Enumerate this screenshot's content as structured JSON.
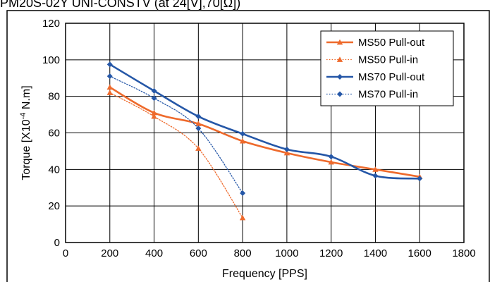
{
  "page_title_partial": "PM20S-02Y UNI-CONSTV (at 24[V],70[Ω])",
  "colors": {
    "orange": "#ee6a2c",
    "blue": "#2557a7",
    "grid": "#000000",
    "frame": "#000000"
  },
  "chart_data": {
    "type": "line",
    "title": "",
    "xlabel": "Frequency [PPS]",
    "ylabel_main": "Torque [X10",
    "ylabel_sup": "-4",
    "ylabel_tail": " N.m]",
    "xlim": [
      0,
      1800
    ],
    "ylim": [
      0,
      120
    ],
    "xticks": [
      0,
      200,
      400,
      600,
      800,
      1000,
      1200,
      1400,
      1600,
      1800
    ],
    "yticks": [
      0,
      20,
      40,
      60,
      80,
      100,
      120
    ],
    "grid": true,
    "legend_position": "top-right",
    "series": [
      {
        "name": "MS50 Pull-out",
        "color": "#ee6a2c",
        "line_style": "solid",
        "marker": "triangle",
        "x": [
          200,
          400,
          600,
          800,
          1000,
          1200,
          1400,
          1600
        ],
        "y": [
          85,
          71,
          65,
          55.5,
          49,
          44,
          40,
          36
        ]
      },
      {
        "name": "MS50 Pull-in",
        "color": "#ee6a2c",
        "line_style": "dotted",
        "marker": "triangle",
        "x": [
          200,
          400,
          600,
          800
        ],
        "y": [
          82,
          69,
          51.5,
          13.5
        ]
      },
      {
        "name": "MS70 Pull-out",
        "color": "#2557a7",
        "line_style": "solid",
        "marker": "diamond",
        "x": [
          200,
          400,
          600,
          800,
          1000,
          1200,
          1400,
          1600
        ],
        "y": [
          97.5,
          83,
          69,
          59.5,
          51,
          47,
          36.5,
          35
        ]
      },
      {
        "name": "MS70 Pull-in",
        "color": "#2557a7",
        "line_style": "dotted",
        "marker": "diamond",
        "x": [
          200,
          400,
          600,
          800
        ],
        "y": [
          91,
          79,
          62.5,
          27
        ]
      }
    ]
  }
}
